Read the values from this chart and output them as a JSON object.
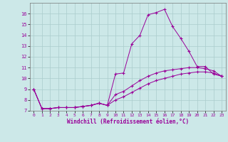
{
  "xlabel": "Windchill (Refroidissement éolien,°C)",
  "background_color": "#cce8e8",
  "line_color": "#990099",
  "grid_color": "#aacccc",
  "xlim": [
    -0.5,
    23.5
  ],
  "ylim": [
    7,
    17
  ],
  "yticks": [
    7,
    8,
    9,
    10,
    11,
    12,
    13,
    14,
    15,
    16
  ],
  "xticks": [
    0,
    1,
    2,
    3,
    4,
    5,
    6,
    7,
    8,
    9,
    10,
    11,
    12,
    13,
    14,
    15,
    16,
    17,
    18,
    19,
    20,
    21,
    22,
    23
  ],
  "series1_x": [
    0,
    1,
    2,
    3,
    4,
    5,
    6,
    7,
    8,
    9,
    10,
    11,
    12,
    13,
    14,
    15,
    16,
    17,
    18,
    19,
    20,
    21,
    22,
    23
  ],
  "series1_y": [
    9.0,
    7.2,
    7.2,
    7.3,
    7.3,
    7.3,
    7.4,
    7.5,
    7.7,
    7.5,
    10.4,
    10.5,
    13.2,
    14.0,
    15.9,
    16.1,
    16.4,
    14.8,
    13.7,
    12.5,
    11.1,
    11.1,
    10.4,
    10.2
  ],
  "series2_x": [
    0,
    1,
    2,
    3,
    4,
    5,
    6,
    7,
    8,
    9,
    10,
    11,
    12,
    13,
    14,
    15,
    16,
    17,
    18,
    19,
    20,
    21,
    22,
    23
  ],
  "series2_y": [
    9.0,
    7.2,
    7.2,
    7.3,
    7.3,
    7.3,
    7.4,
    7.5,
    7.7,
    7.5,
    8.5,
    8.8,
    9.3,
    9.8,
    10.2,
    10.5,
    10.7,
    10.8,
    10.9,
    11.0,
    11.0,
    10.9,
    10.7,
    10.2
  ],
  "series3_x": [
    0,
    1,
    2,
    3,
    4,
    5,
    6,
    7,
    8,
    9,
    10,
    11,
    12,
    13,
    14,
    15,
    16,
    17,
    18,
    19,
    20,
    21,
    22,
    23
  ],
  "series3_y": [
    9.0,
    7.2,
    7.2,
    7.3,
    7.3,
    7.3,
    7.4,
    7.5,
    7.7,
    7.5,
    8.0,
    8.3,
    8.7,
    9.1,
    9.5,
    9.8,
    10.0,
    10.2,
    10.4,
    10.5,
    10.6,
    10.6,
    10.5,
    10.2
  ]
}
